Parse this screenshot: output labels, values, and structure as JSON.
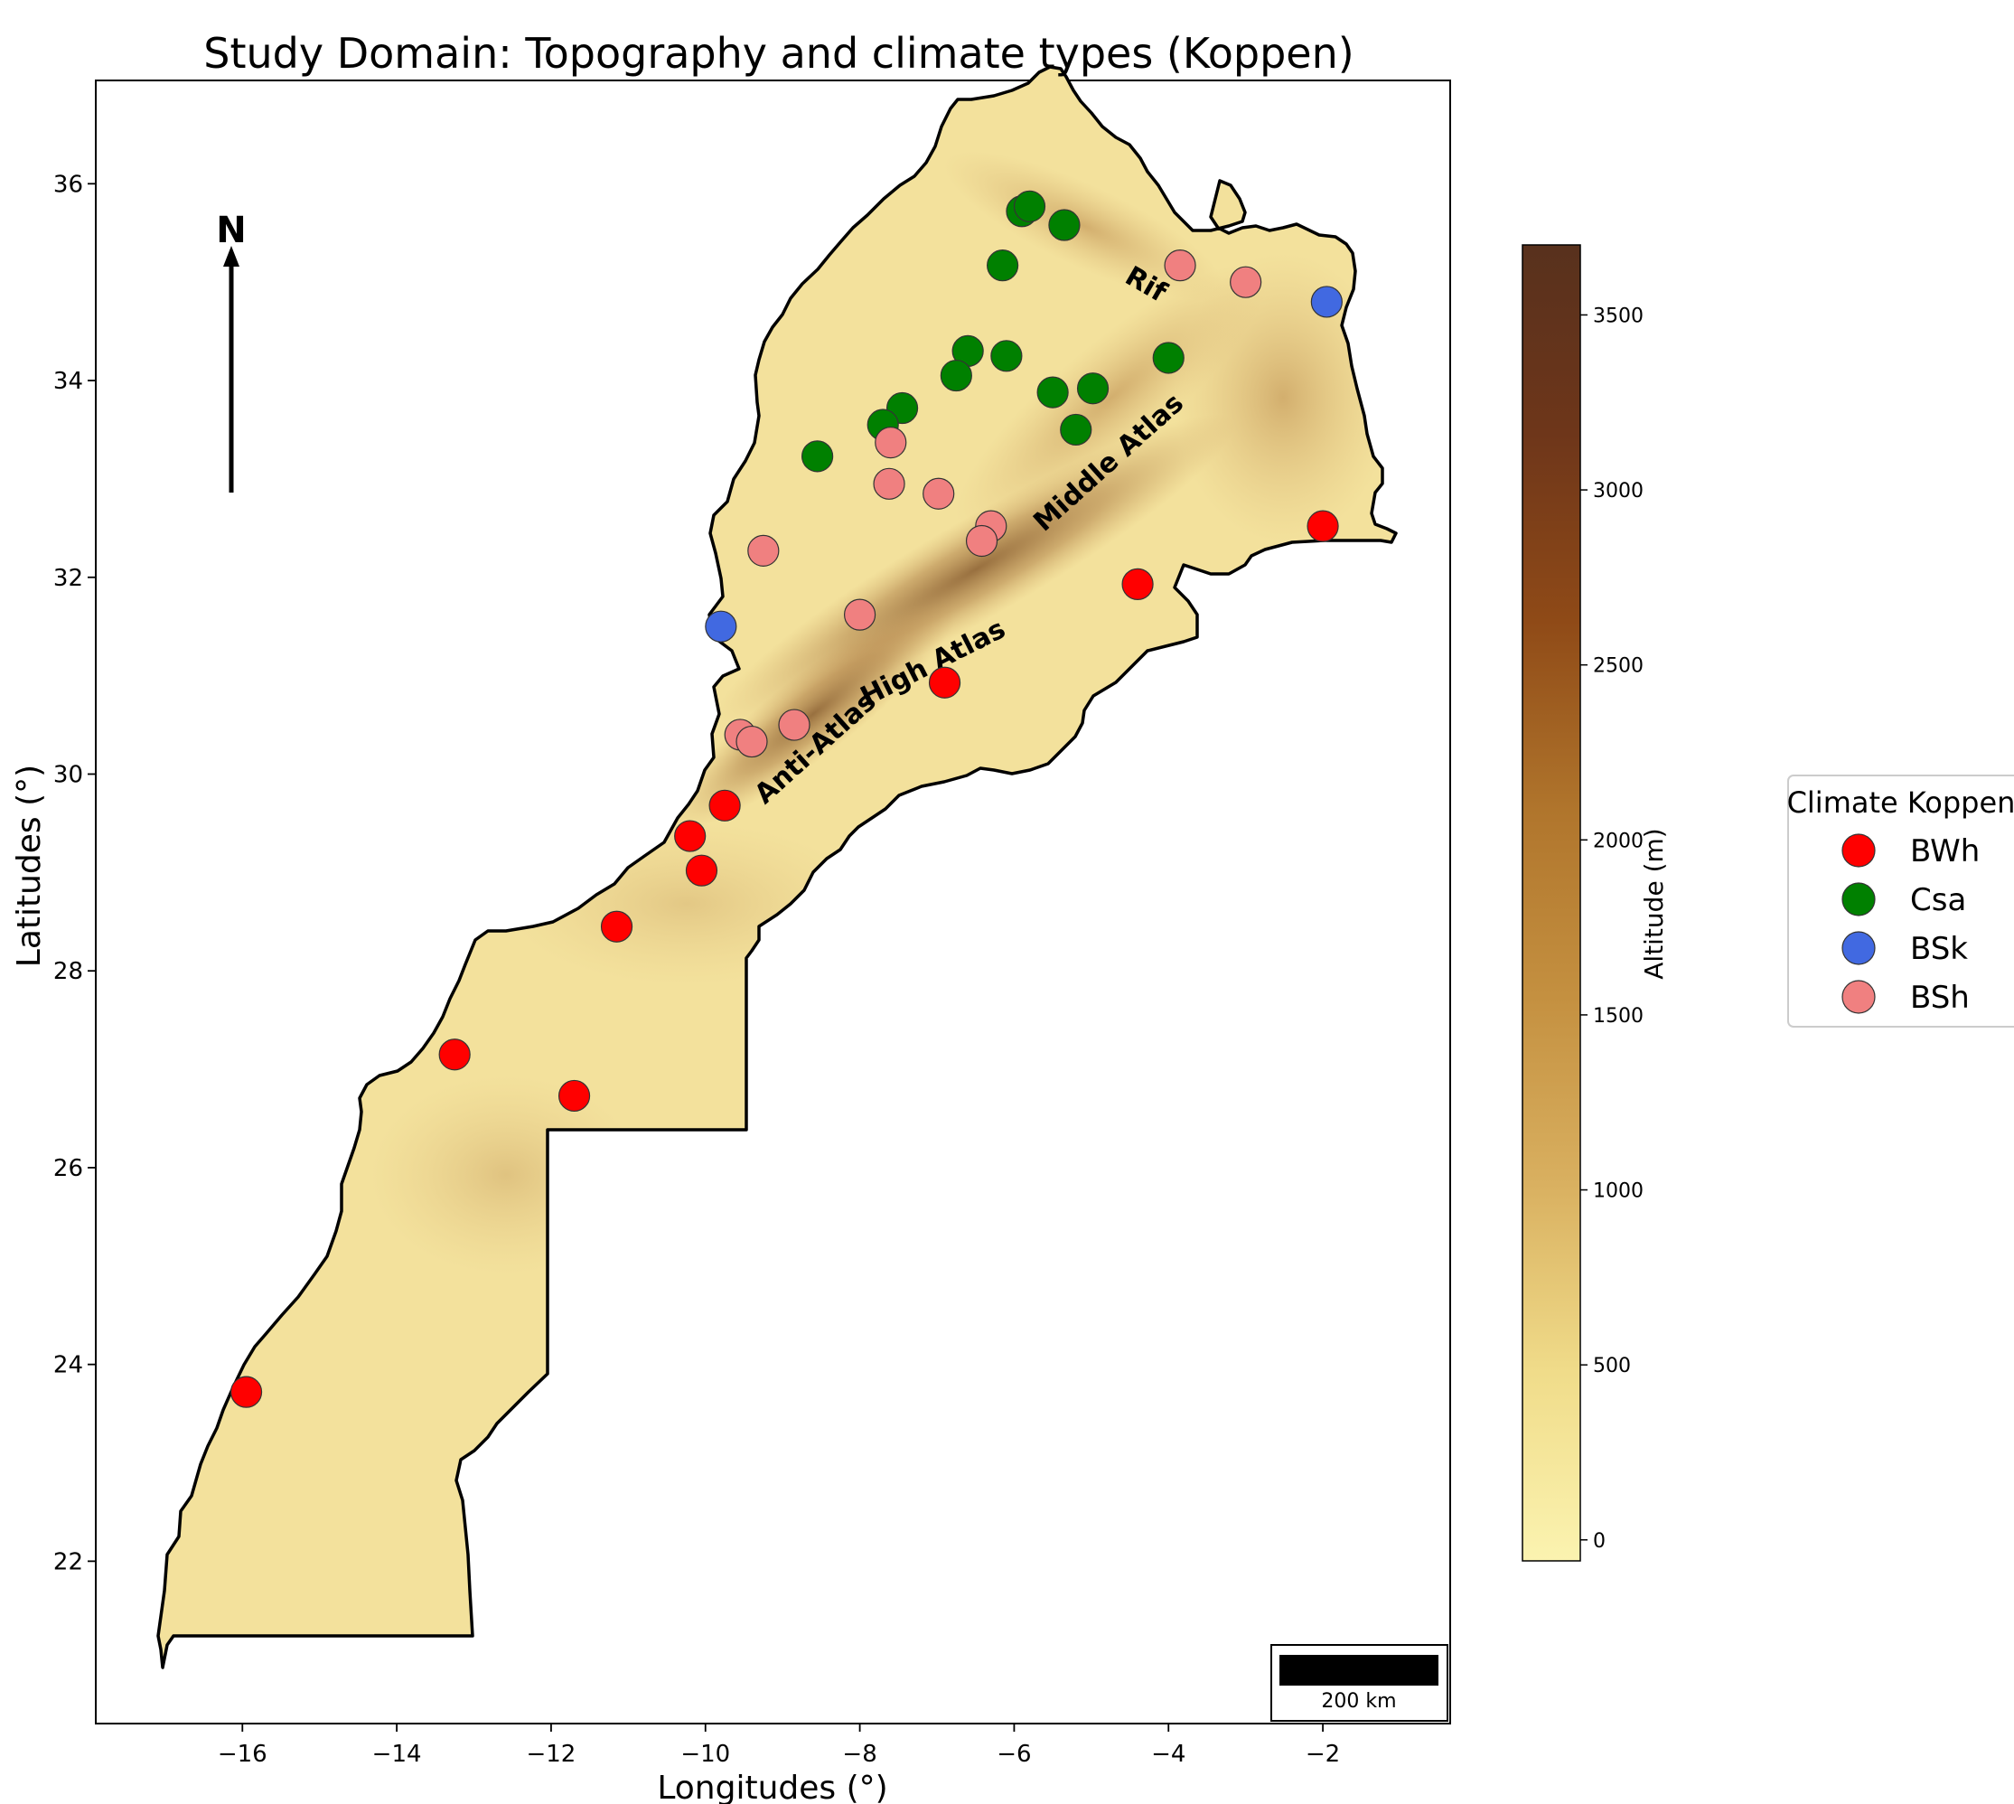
{
  "title": "Study Domain: Topography and climate types (Koppen)",
  "xlabel": "Longitudes (°)",
  "ylabel": "Latitudes (°)",
  "xticks": [
    {
      "value": -16,
      "label": "−16"
    },
    {
      "value": -14,
      "label": "−14"
    },
    {
      "value": -12,
      "label": "−12"
    },
    {
      "value": -10,
      "label": "−10"
    },
    {
      "value": -8,
      "label": "−8"
    },
    {
      "value": -6,
      "label": "−6"
    },
    {
      "value": -4,
      "label": "−4"
    },
    {
      "value": -2,
      "label": "−2"
    }
  ],
  "yticks": [
    {
      "value": 22,
      "label": "22"
    },
    {
      "value": 24,
      "label": "24"
    },
    {
      "value": 26,
      "label": "26"
    },
    {
      "value": 28,
      "label": "28"
    },
    {
      "value": 30,
      "label": "30"
    },
    {
      "value": 32,
      "label": "32"
    },
    {
      "value": 34,
      "label": "34"
    },
    {
      "value": 36,
      "label": "36"
    }
  ],
  "xlim": [
    -17.9,
    -0.35
  ],
  "ylim": [
    20.35,
    37.05
  ],
  "north_arrow": {
    "label": "N",
    "icon": "north-arrow-icon"
  },
  "scale_bar": {
    "label": "200 km"
  },
  "colorbar": {
    "title": "Altitude (m)",
    "range": [
      -60,
      3700
    ],
    "ticks": [
      0,
      500,
      1000,
      1500,
      2000,
      2500,
      3000,
      3500
    ],
    "colors": [
      "#fbf3b0",
      "#f0dc8a",
      "#d9b060",
      "#c49040",
      "#b0752c",
      "#8f4a17",
      "#6e361a",
      "#58311d"
    ]
  },
  "region_labels": [
    {
      "text": "Rif",
      "lon": -4.35,
      "lat": 34.9,
      "rotate": 30
    },
    {
      "text": "Middle Atlas",
      "lon": -4.7,
      "lat": 33.1,
      "rotate": -42
    },
    {
      "text": "High Atlas",
      "lon": -7.0,
      "lat": 31.05,
      "rotate": -27
    },
    {
      "text": "Anti-Atlas",
      "lon": -8.5,
      "lat": 30.2,
      "rotate": -42
    }
  ],
  "legend": {
    "title": "Climate Koppen",
    "entries": [
      {
        "label": "BWh",
        "color": "#ff0000"
      },
      {
        "label": "Csa",
        "color": "#008000"
      },
      {
        "label": "BSk",
        "color": "#4169e1"
      },
      {
        "label": "BSh",
        "color": "#f08080"
      }
    ]
  },
  "chart_data": {
    "type": "scatter",
    "title": "Study Domain: Topography and climate types (Koppen)",
    "xlabel": "Longitudes (°)",
    "ylabel": "Latitudes (°)",
    "xlim": [
      -17.9,
      -0.35
    ],
    "ylim": [
      20.35,
      37.05
    ],
    "series": [
      {
        "name": "BWh",
        "color": "#ff0000",
        "points": [
          [
            -15.95,
            23.72
          ],
          [
            -13.25,
            27.15
          ],
          [
            -11.7,
            26.73
          ],
          [
            -11.15,
            28.45
          ],
          [
            -10.2,
            29.37
          ],
          [
            -10.05,
            29.02
          ],
          [
            -9.75,
            29.68
          ],
          [
            -6.9,
            30.93
          ],
          [
            -4.4,
            31.93
          ],
          [
            -2.0,
            32.52
          ]
        ]
      },
      {
        "name": "Csa",
        "color": "#008000",
        "points": [
          [
            -5.9,
            35.72
          ],
          [
            -5.8,
            35.77
          ],
          [
            -5.35,
            35.58
          ],
          [
            -6.15,
            35.17
          ],
          [
            -6.6,
            34.3
          ],
          [
            -6.1,
            34.25
          ],
          [
            -6.75,
            34.05
          ],
          [
            -5.5,
            33.88
          ],
          [
            -4.98,
            33.92
          ],
          [
            -4.0,
            34.23
          ],
          [
            -5.2,
            33.5
          ],
          [
            -7.45,
            33.72
          ],
          [
            -7.7,
            33.55
          ],
          [
            -8.55,
            33.23
          ]
        ]
      },
      {
        "name": "BSk",
        "color": "#4169e1",
        "points": [
          [
            -9.8,
            31.5
          ],
          [
            -1.95,
            34.8
          ]
        ]
      },
      {
        "name": "BSh",
        "color": "#f08080",
        "points": [
          [
            -3.85,
            35.17
          ],
          [
            -3.0,
            35.0
          ],
          [
            -7.6,
            33.37
          ],
          [
            -7.62,
            32.95
          ],
          [
            -6.98,
            32.85
          ],
          [
            -9.25,
            32.27
          ],
          [
            -6.3,
            32.52
          ],
          [
            -6.42,
            32.37
          ],
          [
            -8.0,
            31.62
          ],
          [
            -9.55,
            30.4
          ],
          [
            -9.4,
            30.33
          ],
          [
            -8.85,
            30.5
          ]
        ]
      }
    ]
  }
}
